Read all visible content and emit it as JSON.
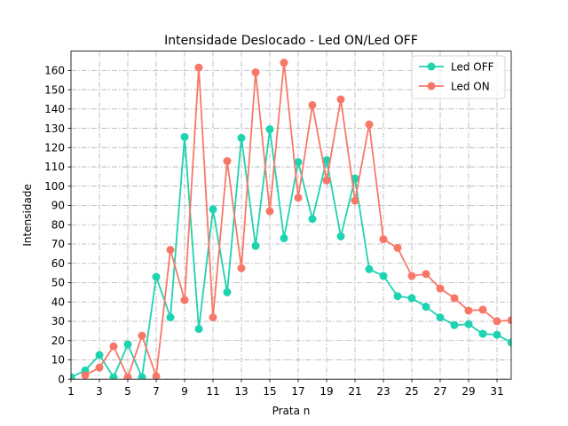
{
  "chart_data": {
    "type": "line",
    "title": "Intensidade Deslocado - Led ON/Led OFF",
    "xlabel": "Prata n",
    "ylabel": "Intensidade",
    "xlim": [
      1,
      32
    ],
    "ylim": [
      0,
      170
    ],
    "xticks": [
      1,
      3,
      5,
      7,
      9,
      11,
      13,
      15,
      17,
      19,
      21,
      23,
      25,
      27,
      29,
      31
    ],
    "yticks": [
      0,
      10,
      20,
      30,
      40,
      50,
      60,
      70,
      80,
      90,
      100,
      110,
      120,
      130,
      140,
      150,
      160
    ],
    "grid": true,
    "legend_position": "top-right",
    "series": [
      {
        "name": "Led OFF",
        "color": "#1dd3b0",
        "x": [
          1,
          2,
          3,
          4,
          5,
          6,
          7,
          8,
          9,
          10,
          11,
          12,
          13,
          14,
          15,
          16,
          17,
          18,
          19,
          20,
          21,
          22,
          23,
          24,
          25,
          26,
          27,
          28,
          29,
          30,
          31,
          32
        ],
        "values": [
          1,
          4.5,
          12.5,
          1,
          18,
          1,
          53,
          32,
          125.5,
          26,
          88,
          45,
          125,
          69,
          129.5,
          73,
          112.5,
          83,
          113.5,
          74,
          104,
          57,
          53.5,
          43,
          42,
          37.5,
          32,
          28,
          28.5,
          23.5,
          23,
          19
        ]
      },
      {
        "name": "Led ON",
        "color": "#f87868",
        "x": [
          2,
          3,
          4,
          5,
          6,
          7,
          8,
          9,
          10,
          11,
          12,
          13,
          14,
          15,
          16,
          17,
          18,
          19,
          20,
          21,
          22,
          23,
          24,
          25,
          26,
          27,
          28,
          29,
          30,
          31,
          32
        ],
        "values": [
          2,
          6,
          17,
          1,
          22.5,
          1.5,
          67,
          41,
          161.5,
          32,
          113,
          57.5,
          159,
          87,
          164,
          94,
          142,
          103,
          145,
          92.5,
          132,
          72.5,
          68,
          53.5,
          54.5,
          47,
          42,
          35.5,
          36,
          30,
          30.5
        ]
      }
    ]
  }
}
